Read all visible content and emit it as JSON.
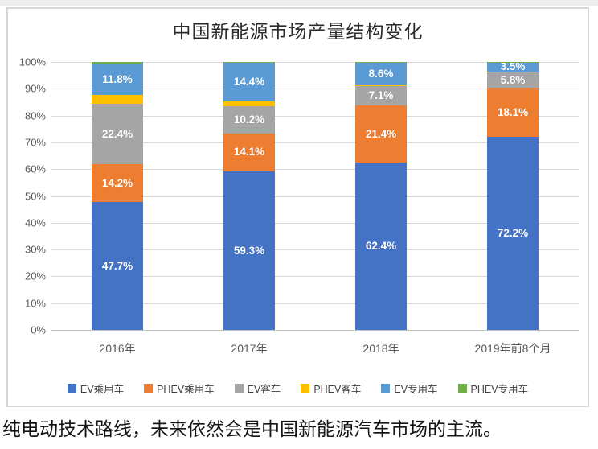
{
  "title": "中国新能源市场产量结构变化",
  "caption": "纯电动技术路线，未来依然会是中国新能源汽车市场的主流。",
  "colors": {
    "grid": "#d9d9d9",
    "axis_text": "#595959",
    "label_text": "#ffffff",
    "ev_passenger": "#4472c4",
    "phev_passenger": "#ed7d31",
    "ev_bus": "#a5a5a5",
    "phev_bus": "#ffc000",
    "ev_special": "#5b9bd5",
    "phev_special": "#70ad47"
  },
  "chart_data": {
    "type": "bar",
    "stacked": true,
    "title": "中国新能源市场产量结构变化",
    "categories": [
      "2016年",
      "2017年",
      "2018年",
      "2019年前8个月"
    ],
    "series": [
      {
        "name": "EV乘用车",
        "color": "#4472c4",
        "labeled": true,
        "values": [
          47.7,
          59.3,
          62.4,
          72.2
        ]
      },
      {
        "name": "PHEV乘用车",
        "color": "#ed7d31",
        "labeled": true,
        "values": [
          14.2,
          14.1,
          21.4,
          18.1
        ]
      },
      {
        "name": "EV客车",
        "color": "#a5a5a5",
        "labeled": true,
        "values": [
          22.4,
          10.2,
          7.1,
          5.8
        ]
      },
      {
        "name": "PHEV客车",
        "color": "#ffc000",
        "labeled": false,
        "values": [
          3.4,
          1.7,
          0.4,
          0.3
        ]
      },
      {
        "name": "EV专用车",
        "color": "#5b9bd5",
        "labeled": true,
        "values": [
          11.8,
          14.4,
          8.6,
          3.5
        ]
      },
      {
        "name": "PHEV专用车",
        "color": "#70ad47",
        "labeled": false,
        "values": [
          0.5,
          0.3,
          0.1,
          0.1
        ]
      }
    ],
    "data_labels": {
      "EV乘用车": [
        "47.7%",
        "59.3%",
        "62.4%",
        "72.2%"
      ],
      "PHEV乘用车": [
        "14.2%",
        "14.1%",
        "21.4%",
        "18.1%"
      ],
      "EV客车": [
        "22.4%",
        "10.2%",
        "7.1%",
        "5.8%"
      ],
      "EV专用车": [
        "11.8%",
        "14.4%",
        "8.6%",
        "3.5%"
      ]
    },
    "y_ticks": [
      "100%",
      "90%",
      "80%",
      "70%",
      "60%",
      "50%",
      "40%",
      "30%",
      "20%",
      "10%",
      "0%"
    ],
    "ylim": [
      0,
      100
    ],
    "grid": true,
    "legend_position": "bottom"
  }
}
